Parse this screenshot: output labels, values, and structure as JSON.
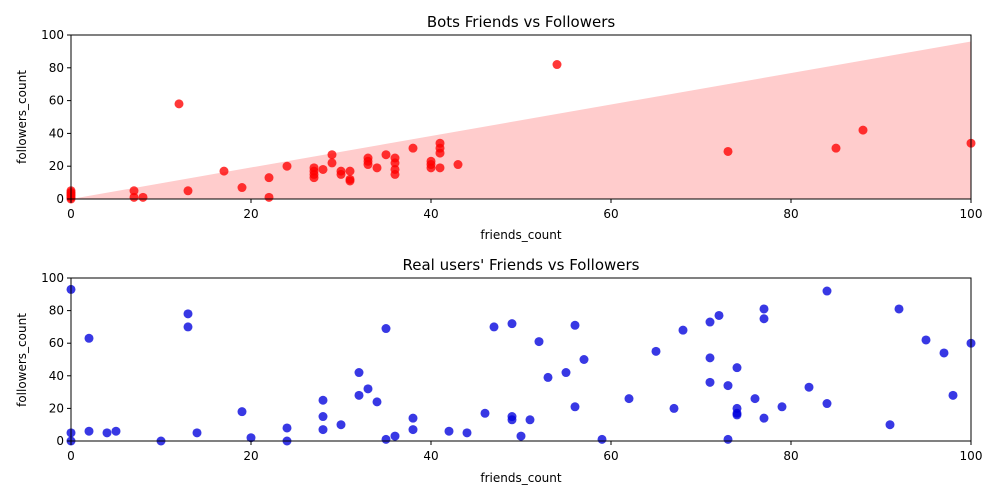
{
  "chart_data": [
    {
      "type": "scatter",
      "title": "Bots Friends vs Followers",
      "xlabel": "friends_count",
      "ylabel": "followers_count",
      "xlim": [
        0,
        100
      ],
      "ylim": [
        0,
        100
      ],
      "xticks": [
        0,
        20,
        40,
        60,
        80,
        100
      ],
      "yticks": [
        0,
        20,
        40,
        60,
        80,
        100
      ],
      "grid": false,
      "point_color": "#ff0000",
      "shaded_region": {
        "description": "triangle below line",
        "color": "#ffcccc",
        "vertices": [
          [
            0,
            0
          ],
          [
            100,
            96
          ],
          [
            100,
            0
          ]
        ]
      },
      "points": [
        [
          0,
          0
        ],
        [
          0,
          1
        ],
        [
          0,
          2
        ],
        [
          0,
          3
        ],
        [
          0,
          4
        ],
        [
          0,
          5
        ],
        [
          7,
          1
        ],
        [
          7,
          5
        ],
        [
          8,
          1
        ],
        [
          12,
          58
        ],
        [
          13,
          5
        ],
        [
          17,
          17
        ],
        [
          19,
          7
        ],
        [
          22,
          1
        ],
        [
          22,
          13
        ],
        [
          24,
          20
        ],
        [
          27,
          13
        ],
        [
          27,
          15
        ],
        [
          27,
          17
        ],
        [
          27,
          19
        ],
        [
          28,
          18
        ],
        [
          29,
          22
        ],
        [
          29,
          27
        ],
        [
          30,
          15
        ],
        [
          30,
          17
        ],
        [
          31,
          11
        ],
        [
          31,
          12
        ],
        [
          31,
          17
        ],
        [
          33,
          21
        ],
        [
          33,
          23
        ],
        [
          33,
          25
        ],
        [
          34,
          19
        ],
        [
          35,
          27
        ],
        [
          36,
          15
        ],
        [
          36,
          18
        ],
        [
          36,
          22
        ],
        [
          36,
          25
        ],
        [
          38,
          31
        ],
        [
          40,
          19
        ],
        [
          40,
          21
        ],
        [
          40,
          23
        ],
        [
          41,
          19
        ],
        [
          41,
          28
        ],
        [
          41,
          31
        ],
        [
          41,
          34
        ],
        [
          43,
          21
        ],
        [
          54,
          82
        ],
        [
          73,
          29
        ],
        [
          85,
          31
        ],
        [
          88,
          42
        ],
        [
          100,
          34
        ]
      ]
    },
    {
      "type": "scatter",
      "title": "Real users' Friends vs Followers",
      "xlabel": "friends_count",
      "ylabel": "followers_count",
      "xlim": [
        0,
        100
      ],
      "ylim": [
        0,
        100
      ],
      "xticks": [
        0,
        20,
        40,
        60,
        80,
        100
      ],
      "yticks": [
        0,
        20,
        40,
        60,
        80,
        100
      ],
      "grid": false,
      "point_color": "#0000dd",
      "points": [
        [
          0,
          93
        ],
        [
          0,
          5
        ],
        [
          0,
          0
        ],
        [
          2,
          63
        ],
        [
          2,
          6
        ],
        [
          4,
          5
        ],
        [
          5,
          6
        ],
        [
          10,
          0
        ],
        [
          13,
          78
        ],
        [
          13,
          70
        ],
        [
          14,
          5
        ],
        [
          19,
          18
        ],
        [
          20,
          2
        ],
        [
          24,
          8
        ],
        [
          24,
          0
        ],
        [
          28,
          25
        ],
        [
          28,
          15
        ],
        [
          28,
          7
        ],
        [
          30,
          10
        ],
        [
          32,
          42
        ],
        [
          32,
          28
        ],
        [
          33,
          32
        ],
        [
          34,
          24
        ],
        [
          35,
          69
        ],
        [
          35,
          1
        ],
        [
          36,
          3
        ],
        [
          38,
          14
        ],
        [
          38,
          7
        ],
        [
          42,
          6
        ],
        [
          44,
          5
        ],
        [
          46,
          17
        ],
        [
          47,
          70
        ],
        [
          49,
          72
        ],
        [
          49,
          15
        ],
        [
          49,
          13
        ],
        [
          50,
          3
        ],
        [
          51,
          13
        ],
        [
          52,
          61
        ],
        [
          53,
          39
        ],
        [
          55,
          42
        ],
        [
          56,
          71
        ],
        [
          56,
          21
        ],
        [
          57,
          50
        ],
        [
          59,
          1
        ],
        [
          62,
          26
        ],
        [
          65,
          55
        ],
        [
          67,
          20
        ],
        [
          68,
          68
        ],
        [
          71,
          73
        ],
        [
          71,
          51
        ],
        [
          71,
          36
        ],
        [
          72,
          77
        ],
        [
          73,
          34
        ],
        [
          73,
          1
        ],
        [
          74,
          45
        ],
        [
          74,
          20
        ],
        [
          74,
          17
        ],
        [
          74,
          16
        ],
        [
          76,
          26
        ],
        [
          77,
          81
        ],
        [
          77,
          75
        ],
        [
          77,
          14
        ],
        [
          79,
          21
        ],
        [
          82,
          33
        ],
        [
          84,
          92
        ],
        [
          84,
          23
        ],
        [
          91,
          10
        ],
        [
          92,
          81
        ],
        [
          95,
          62
        ],
        [
          97,
          54
        ],
        [
          98,
          28
        ],
        [
          100,
          60
        ]
      ]
    }
  ]
}
